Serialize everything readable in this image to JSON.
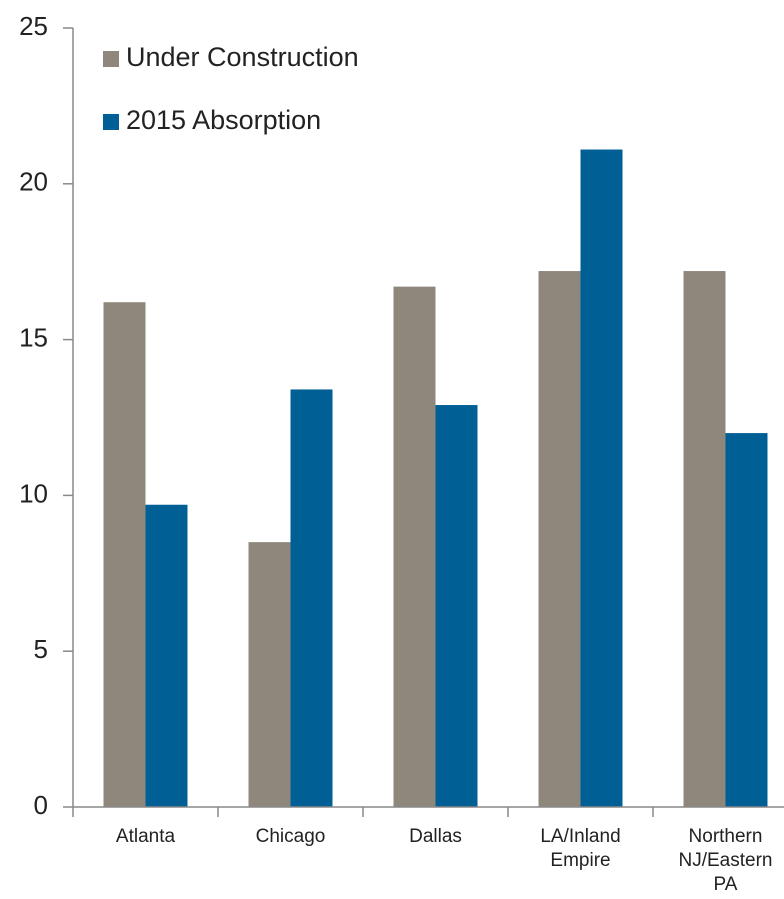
{
  "chart_data": {
    "type": "bar",
    "categories": [
      "Atlanta",
      "Chicago",
      "Dallas",
      "LA/Inland Empire",
      "Northern NJ/Eastern PA"
    ],
    "series": [
      {
        "name": "Under Construction",
        "color": "#8f877c",
        "values": [
          16.2,
          8.5,
          16.7,
          17.2,
          17.2
        ]
      },
      {
        "name": "2015 Absorption",
        "color": "#006096",
        "values": [
          9.7,
          13.4,
          12.9,
          21.1,
          12.0
        ]
      }
    ],
    "ylim": [
      0,
      25
    ],
    "yticks": [
      0,
      5,
      10,
      15,
      20,
      25
    ],
    "legend": "top-left"
  }
}
